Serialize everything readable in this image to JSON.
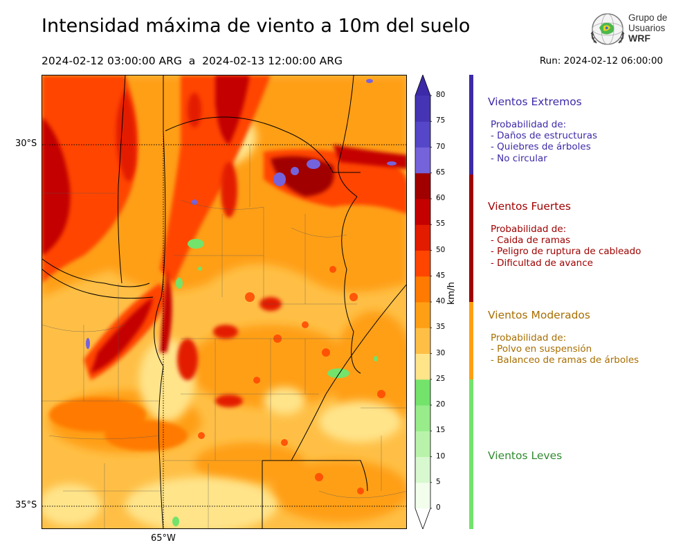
{
  "header": {
    "title": "Intensidad máxima de viento a 10m del suelo",
    "period": "2024-02-12 03:00:00 ARG  a  2024-02-13 12:00:00 ARG",
    "run": "Run: 2024-02-12 06:00:00"
  },
  "logo": {
    "line1": "Grupo de",
    "line2": "Usuarios",
    "line3": "WRF"
  },
  "map": {
    "lat_labels": [
      "30°S",
      "35°S"
    ],
    "lon_labels": [
      "65°W"
    ]
  },
  "colorbar": {
    "unit": "km/h",
    "ticks": [
      "0",
      "5",
      "10",
      "15",
      "20",
      "25",
      "30",
      "35",
      "40",
      "45",
      "50",
      "55",
      "60",
      "65",
      "70",
      "75",
      "80"
    ],
    "colors": [
      "#f2fdec",
      "#d8f8cf",
      "#b9f3ab",
      "#98ec8a",
      "#73e36b",
      "#ffe48a",
      "#ffbf46",
      "#ff9f14",
      "#ff7a00",
      "#ff4500",
      "#e31c00",
      "#c40000",
      "#a00000",
      "#7563db",
      "#5547c8",
      "#4535b4"
    ],
    "top_arrow_color": "#3c2aa8",
    "bottom_arrow_color": "#ffffff"
  },
  "categories": [
    {
      "title": "Vientos Extremos",
      "color": "#3c2aa8",
      "bar_color": "#3c2aa8",
      "lines": [
        "Probabilidad de:",
        "- Daños de estructuras",
        "- Quiebres de árboles",
        "- No circular"
      ]
    },
    {
      "title": "Vientos Fuertes",
      "color": "#a00000",
      "bar_color": "#a00000",
      "lines": [
        "Probabilidad de:",
        "- Caida de ramas",
        "- Peligro de ruptura de cableado",
        "- Dificultad de avance"
      ]
    },
    {
      "title": "Vientos Moderados",
      "color": "#a86e00",
      "bar_color": "#ff9f14",
      "lines": [
        "Probabilidad de:",
        "- Polvo en suspensión",
        "- Balanceo de ramas de árboles"
      ]
    },
    {
      "title": "Vientos Leves",
      "color": "#2f8a2f",
      "bar_color": "#73e36b",
      "lines": []
    }
  ]
}
